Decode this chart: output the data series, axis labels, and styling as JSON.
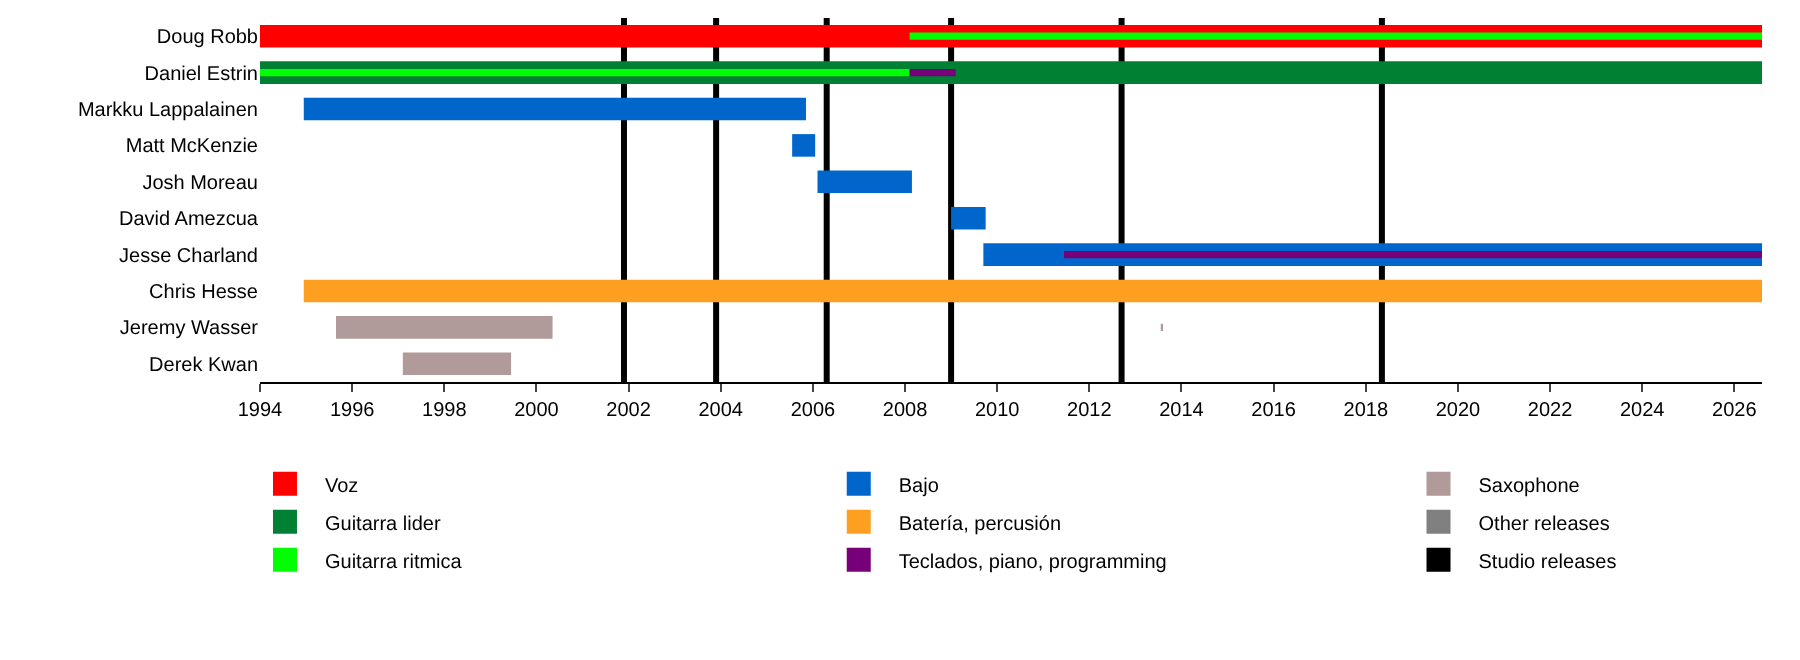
{
  "chart_data": {
    "type": "bar",
    "orientation": "horizontal",
    "categories": [
      "Doug Robb",
      "Daniel Estrin",
      "Markku Lappalainen",
      "Matt McKenzie",
      "Josh Moreau",
      "David Amezcua",
      "Jesse Charland",
      "Chris Hesse",
      "Jeremy Wasser",
      "Derek Kwan"
    ],
    "series": [
      {
        "name": "Voz",
        "color": "#ff0000",
        "base": [
          1994,
          null,
          null,
          null,
          null,
          null,
          null,
          null,
          null,
          null
        ],
        "values": [
          32.6,
          null,
          null,
          null,
          null,
          null,
          null,
          null,
          null,
          null
        ]
      },
      {
        "name": "Guitarra lider",
        "color": "#008033",
        "base": [
          null,
          1994,
          null,
          null,
          null,
          null,
          null,
          null,
          null,
          null
        ],
        "values": [
          null,
          32.6,
          null,
          null,
          null,
          null,
          null,
          null,
          null,
          null
        ]
      },
      {
        "name": "Guitarra ritmica",
        "color": "#00ff00",
        "base": [
          2008.1,
          1994,
          null,
          null,
          null,
          null,
          null,
          null,
          null,
          null
        ],
        "values": [
          18.5,
          14.1,
          null,
          null,
          null,
          null,
          null,
          null,
          null,
          null
        ]
      },
      {
        "name": "Bajo",
        "color": "#0066cc",
        "base": [
          null,
          null,
          1994.95,
          2005.55,
          2006.1,
          2009.0,
          2009.7,
          null,
          null,
          null
        ],
        "values": [
          null,
          null,
          10.9,
          0.5,
          2.05,
          0.75,
          16.9,
          null,
          null,
          null
        ]
      },
      {
        "name": "Batería, percusión",
        "color": "#ff9f22",
        "base": [
          null,
          null,
          null,
          null,
          null,
          null,
          null,
          1994.95,
          null,
          null
        ],
        "values": [
          null,
          null,
          null,
          null,
          null,
          null,
          null,
          31.65,
          null,
          null
        ]
      },
      {
        "name": "Teclados, piano, programming",
        "color": "#77007a",
        "base": [
          null,
          2008.1,
          null,
          null,
          null,
          null,
          2011.45,
          null,
          null,
          null
        ],
        "values": [
          null,
          1.0,
          null,
          null,
          null,
          null,
          15.15,
          null,
          null,
          null
        ]
      },
      {
        "name": "Saxophone",
        "color": "#b09a9a",
        "base": [
          null,
          null,
          null,
          null,
          null,
          null,
          null,
          null,
          1995.65,
          1997.1
        ],
        "values": [
          null,
          null,
          null,
          null,
          null,
          null,
          null,
          null,
          4.7,
          2.35
        ]
      },
      {
        "color": "#b09a9a",
        "base": [
          null,
          null,
          null,
          null,
          null,
          null,
          null,
          null,
          2013.55,
          null
        ],
        "values": [
          null,
          null,
          null,
          null,
          null,
          null,
          null,
          null,
          0.05,
          null
        ]
      },
      {
        "name": "Other releases",
        "color": "#808080",
        "values": [
          null,
          null,
          null,
          null,
          null,
          null,
          null,
          null,
          null,
          null
        ]
      }
    ],
    "ref_lines": [
      {
        "axis": "x",
        "value": 2001.9,
        "label": "Studio releases",
        "color": "#000000"
      },
      {
        "axis": "x",
        "value": 2003.9,
        "color": "#000000"
      },
      {
        "axis": "x",
        "value": 2006.3,
        "color": "#000000"
      },
      {
        "axis": "x",
        "value": 2009.0,
        "color": "#000000"
      },
      {
        "axis": "x",
        "value": 2012.7,
        "color": "#000000"
      },
      {
        "axis": "x",
        "value": 2018.35,
        "color": "#000000"
      }
    ],
    "xlim": [
      1994,
      2026.6
    ],
    "xticks": [
      1994,
      1996,
      1998,
      2000,
      2002,
      2004,
      2006,
      2008,
      2010,
      2012,
      2014,
      2016,
      2018,
      2020,
      2022,
      2024,
      2026
    ],
    "grid": false,
    "legend": "bottom"
  }
}
